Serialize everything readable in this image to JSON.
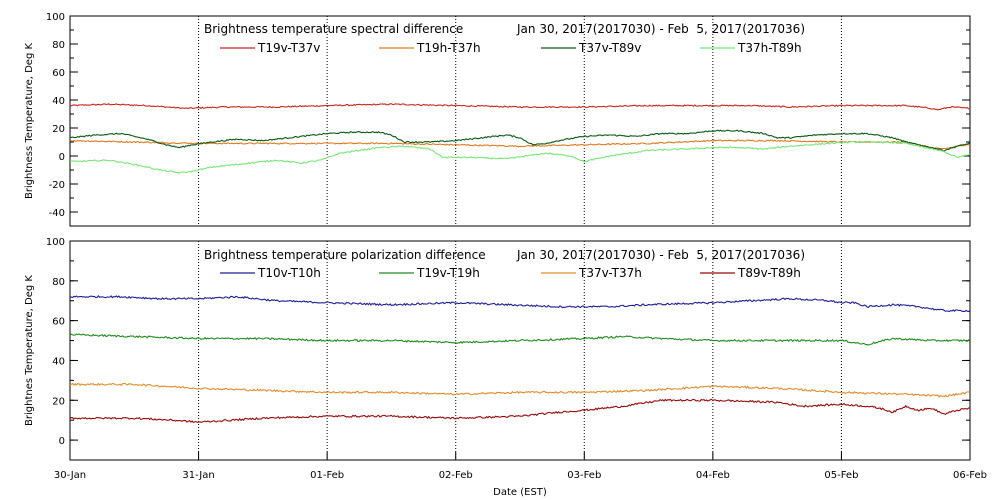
{
  "chart_data": [
    {
      "type": "line",
      "title": "Brightness temperature spectral difference",
      "date_range": "Jan 30, 2017(2017030) - Feb  5, 2017(2017036)",
      "ylabel": "Brightness Temperature, Deg K",
      "ylim": [
        -50,
        100
      ],
      "yticks": [
        -40,
        -20,
        0,
        20,
        40,
        60,
        80,
        100
      ],
      "xlim": [
        0,
        7
      ],
      "series": [
        {
          "name": "T19v-T37v",
          "color": "#c8281e",
          "points": [
            [
              0,
              36
            ],
            [
              0.3,
              37
            ],
            [
              0.6,
              36
            ],
            [
              0.9,
              34
            ],
            [
              1.2,
              35
            ],
            [
              1.6,
              35
            ],
            [
              2.0,
              36
            ],
            [
              2.5,
              37
            ],
            [
              3.0,
              36
            ],
            [
              3.5,
              35
            ],
            [
              4.0,
              35
            ],
            [
              4.5,
              36
            ],
            [
              5.0,
              36
            ],
            [
              5.3,
              36
            ],
            [
              5.6,
              35
            ],
            [
              6.0,
              36
            ],
            [
              6.3,
              36
            ],
            [
              6.5,
              36
            ],
            [
              6.7,
              34
            ],
            [
              6.75,
              33
            ],
            [
              6.85,
              35
            ],
            [
              7.0,
              34
            ]
          ]
        },
        {
          "name": "T19h-T37h",
          "color": "#e07a1e",
          "points": [
            [
              0,
              11
            ],
            [
              0.5,
              10
            ],
            [
              1.0,
              9
            ],
            [
              1.5,
              9
            ],
            [
              2.0,
              9
            ],
            [
              2.5,
              9
            ],
            [
              3.0,
              8
            ],
            [
              3.5,
              7
            ],
            [
              4.0,
              8
            ],
            [
              4.5,
              9
            ],
            [
              5.0,
              11
            ],
            [
              5.5,
              11
            ],
            [
              6.0,
              10
            ],
            [
              6.5,
              10
            ],
            [
              6.7,
              6
            ],
            [
              6.8,
              5
            ],
            [
              6.9,
              7
            ],
            [
              7.0,
              8
            ]
          ]
        },
        {
          "name": "T37v-T89v",
          "color": "#0a5a14",
          "points": [
            [
              0,
              13
            ],
            [
              0.2,
              15
            ],
            [
              0.4,
              16
            ],
            [
              0.6,
              12
            ],
            [
              0.75,
              8
            ],
            [
              0.85,
              6
            ],
            [
              0.95,
              8
            ],
            [
              1.1,
              10
            ],
            [
              1.3,
              12
            ],
            [
              1.5,
              11
            ],
            [
              1.7,
              13
            ],
            [
              2.0,
              16
            ],
            [
              2.2,
              17
            ],
            [
              2.4,
              17
            ],
            [
              2.5,
              15
            ],
            [
              2.6,
              10
            ],
            [
              2.8,
              10
            ],
            [
              3.0,
              11
            ],
            [
              3.2,
              13
            ],
            [
              3.4,
              15
            ],
            [
              3.5,
              13
            ],
            [
              3.6,
              8
            ],
            [
              3.7,
              9
            ],
            [
              3.8,
              11
            ],
            [
              4.0,
              14
            ],
            [
              4.2,
              15
            ],
            [
              4.4,
              14
            ],
            [
              4.6,
              16
            ],
            [
              4.8,
              16
            ],
            [
              5.0,
              18
            ],
            [
              5.2,
              18
            ],
            [
              5.4,
              16
            ],
            [
              5.5,
              13
            ],
            [
              5.6,
              13
            ],
            [
              5.8,
              15
            ],
            [
              6.0,
              16
            ],
            [
              6.2,
              16
            ],
            [
              6.4,
              13
            ],
            [
              6.5,
              10
            ],
            [
              6.6,
              8
            ],
            [
              6.7,
              6
            ],
            [
              6.8,
              4
            ],
            [
              6.9,
              7
            ],
            [
              7.0,
              9
            ]
          ]
        },
        {
          "name": "T37h-T89h",
          "color": "#78e678",
          "points": [
            [
              0,
              -4
            ],
            [
              0.3,
              -3
            ],
            [
              0.5,
              -6
            ],
            [
              0.7,
              -10
            ],
            [
              0.85,
              -12
            ],
            [
              0.95,
              -11
            ],
            [
              1.1,
              -8
            ],
            [
              1.4,
              -5
            ],
            [
              1.6,
              -3
            ],
            [
              1.8,
              -5
            ],
            [
              1.95,
              -3
            ],
            [
              2.1,
              2
            ],
            [
              2.4,
              6
            ],
            [
              2.6,
              7
            ],
            [
              2.8,
              5
            ],
            [
              2.9,
              -1
            ],
            [
              3.1,
              -1
            ],
            [
              3.4,
              -2
            ],
            [
              3.7,
              2
            ],
            [
              3.9,
              0
            ],
            [
              4.0,
              -4
            ],
            [
              4.2,
              0
            ],
            [
              4.5,
              4
            ],
            [
              4.8,
              5
            ],
            [
              5.0,
              6
            ],
            [
              5.2,
              6
            ],
            [
              5.4,
              5
            ],
            [
              5.6,
              7
            ],
            [
              5.9,
              9
            ],
            [
              6.1,
              10
            ],
            [
              6.3,
              10
            ],
            [
              6.5,
              9
            ],
            [
              6.7,
              5
            ],
            [
              6.8,
              3
            ],
            [
              6.9,
              -1
            ],
            [
              7.0,
              1
            ]
          ]
        }
      ]
    },
    {
      "type": "line",
      "title": "Brightness temperature polarization difference",
      "date_range": "Jan 30, 2017(2017030) - Feb  5, 2017(2017036)",
      "ylabel": "Brightnes Temperature, Deg K",
      "xlabel": "Date (EST)",
      "ylim": [
        -10,
        100
      ],
      "yticks": [
        0,
        20,
        40,
        60,
        80,
        100
      ],
      "xlim": [
        0,
        7
      ],
      "xticks": [
        "30-Jan",
        "31-Jan",
        "01-Feb",
        "02-Feb",
        "03-Feb",
        "04-Feb",
        "05-Feb",
        "06-Feb"
      ],
      "series": [
        {
          "name": "T10v-T10h",
          "color": "#1e1e96",
          "points": [
            [
              0,
              72
            ],
            [
              0.4,
              72
            ],
            [
              0.7,
              71
            ],
            [
              1.0,
              71
            ],
            [
              1.3,
              72
            ],
            [
              1.6,
              70
            ],
            [
              2.0,
              69
            ],
            [
              2.5,
              68
            ],
            [
              3.0,
              69
            ],
            [
              3.4,
              68
            ],
            [
              3.8,
              67
            ],
            [
              4.2,
              67
            ],
            [
              4.5,
              68
            ],
            [
              5.0,
              69
            ],
            [
              5.3,
              70
            ],
            [
              5.6,
              71
            ],
            [
              5.9,
              70
            ],
            [
              6.0,
              69
            ],
            [
              6.1,
              69
            ],
            [
              6.2,
              67
            ],
            [
              6.4,
              68
            ],
            [
              6.6,
              67
            ],
            [
              6.8,
              65
            ],
            [
              7.0,
              65
            ]
          ]
        },
        {
          "name": "T19v-T19h",
          "color": "#1e8c1e",
          "points": [
            [
              0,
              53
            ],
            [
              0.5,
              52
            ],
            [
              1.0,
              51
            ],
            [
              1.5,
              51
            ],
            [
              2.0,
              50
            ],
            [
              2.5,
              50
            ],
            [
              3.0,
              49
            ],
            [
              3.5,
              50
            ],
            [
              4.0,
              51
            ],
            [
              4.3,
              52
            ],
            [
              4.6,
              51
            ],
            [
              5.0,
              50
            ],
            [
              5.5,
              50
            ],
            [
              6.0,
              50
            ],
            [
              6.2,
              48
            ],
            [
              6.4,
              51
            ],
            [
              6.7,
              50
            ],
            [
              7.0,
              50
            ]
          ]
        },
        {
          "name": "T37v-T37h",
          "color": "#e08c28",
          "points": [
            [
              0,
              28
            ],
            [
              0.5,
              28
            ],
            [
              1.0,
              26
            ],
            [
              1.5,
              25
            ],
            [
              2.0,
              24
            ],
            [
              2.5,
              24
            ],
            [
              3.0,
              23
            ],
            [
              3.5,
              24
            ],
            [
              4.0,
              24
            ],
            [
              4.5,
              25
            ],
            [
              5.0,
              27
            ],
            [
              5.5,
              26
            ],
            [
              6.0,
              24
            ],
            [
              6.5,
              23
            ],
            [
              6.8,
              22
            ],
            [
              7.0,
              24
            ]
          ]
        },
        {
          "name": "T89v-T89h",
          "color": "#960a0a",
          "points": [
            [
              0,
              11
            ],
            [
              0.5,
              11
            ],
            [
              0.8,
              10
            ],
            [
              1.0,
              9
            ],
            [
              1.5,
              11
            ],
            [
              2.0,
              12
            ],
            [
              2.5,
              12
            ],
            [
              3.0,
              11
            ],
            [
              3.5,
              12
            ],
            [
              3.8,
              14
            ],
            [
              4.0,
              15
            ],
            [
              4.3,
              17
            ],
            [
              4.6,
              20
            ],
            [
              5.0,
              20
            ],
            [
              5.5,
              19
            ],
            [
              5.7,
              17
            ],
            [
              6.0,
              18
            ],
            [
              6.2,
              17
            ],
            [
              6.3,
              16
            ],
            [
              6.4,
              14
            ],
            [
              6.5,
              17
            ],
            [
              6.6,
              15
            ],
            [
              6.7,
              16
            ],
            [
              6.8,
              13
            ],
            [
              6.9,
              15
            ],
            [
              7.0,
              16
            ]
          ]
        }
      ]
    }
  ]
}
